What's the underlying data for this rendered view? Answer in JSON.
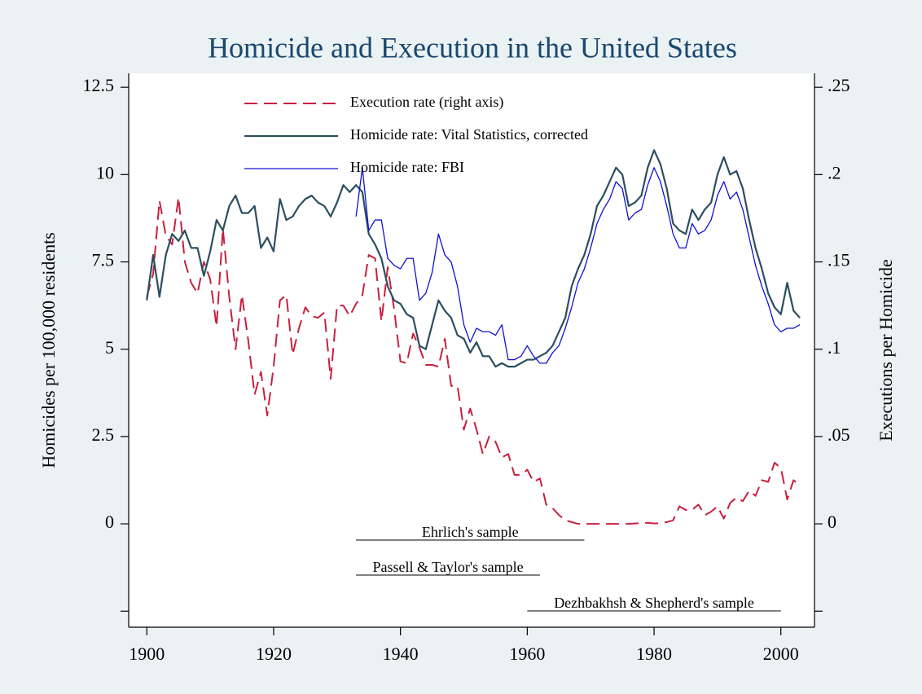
{
  "chart_data": {
    "type": "line",
    "title": "Homicide and Execution in the United States",
    "ylabel": "Homicides per 100,000 residents",
    "y2label": "Executions per Homicide",
    "x": [
      1900,
      1901,
      1902,
      1903,
      1904,
      1905,
      1906,
      1907,
      1908,
      1909,
      1910,
      1911,
      1912,
      1913,
      1914,
      1915,
      1916,
      1917,
      1918,
      1919,
      1920,
      1921,
      1922,
      1923,
      1924,
      1925,
      1926,
      1927,
      1928,
      1929,
      1930,
      1931,
      1932,
      1933,
      1934,
      1935,
      1936,
      1937,
      1938,
      1939,
      1940,
      1941,
      1942,
      1943,
      1944,
      1945,
      1946,
      1947,
      1948,
      1949,
      1950,
      1951,
      1952,
      1953,
      1954,
      1955,
      1956,
      1957,
      1958,
      1959,
      1960,
      1961,
      1962,
      1963,
      1964,
      1965,
      1966,
      1967,
      1968,
      1969,
      1970,
      1971,
      1972,
      1973,
      1974,
      1975,
      1976,
      1977,
      1978,
      1979,
      1980,
      1981,
      1982,
      1983,
      1984,
      1985,
      1986,
      1987,
      1988,
      1989,
      1990,
      1991,
      1992,
      1993,
      1994,
      1995,
      1996,
      1997,
      1998,
      1999,
      2000,
      2001,
      2002,
      2003
    ],
    "series": [
      {
        "name": "Execution rate (right axis)",
        "color": "#c8203f",
        "dashed": true,
        "axis": "y2",
        "values": [
          0.13,
          0.143,
          0.185,
          0.165,
          0.16,
          0.187,
          0.15,
          0.138,
          0.132,
          0.15,
          0.14,
          0.113,
          0.169,
          0.13,
          0.1,
          0.131,
          0.105,
          0.074,
          0.087,
          0.062,
          0.09,
          0.128,
          0.131,
          0.097,
          0.112,
          0.124,
          0.119,
          0.118,
          0.121,
          0.083,
          0.125,
          0.125,
          0.119,
          0.126,
          0.131,
          0.154,
          0.152,
          0.116,
          0.147,
          0.123,
          0.093,
          0.092,
          0.109,
          0.101,
          0.091,
          0.091,
          0.09,
          0.106,
          0.079,
          0.079,
          0.054,
          0.066,
          0.054,
          0.04,
          0.05,
          0.047,
          0.038,
          0.04,
          0.028,
          0.028,
          0.031,
          0.024,
          0.026,
          0.011,
          0.009,
          0.005,
          0.002,
          0.001,
          0,
          0,
          0,
          0,
          0,
          0,
          0,
          0,
          0,
          0.0002,
          0.0004,
          0.0006,
          0.0002,
          0.0004,
          0.001,
          0.002,
          0.01,
          0.008,
          0.008,
          0.011,
          0.005,
          0.007,
          0.01,
          0.003,
          0.012,
          0.015,
          0.013,
          0.019,
          0.016,
          0.025,
          0.024,
          0.035,
          0.032,
          0.014,
          0.025,
          0.022
        ]
      },
      {
        "name": "Homicide rate: Vital Statistics, corrected",
        "color": "#2b4f60",
        "width": 2.2,
        "values": [
          6.4,
          7.7,
          6.5,
          7.7,
          8.3,
          8.1,
          8.4,
          7.9,
          7.9,
          7.1,
          7.8,
          8.7,
          8.4,
          9.1,
          9.4,
          8.9,
          8.9,
          9.1,
          7.9,
          8.2,
          7.8,
          9.3,
          8.7,
          8.8,
          9.1,
          9.3,
          9.4,
          9.2,
          9.1,
          8.8,
          9.2,
          9.7,
          9.5,
          9.7,
          9.5,
          8.3,
          8.0,
          7.6,
          6.8,
          6.4,
          6.3,
          6.0,
          5.9,
          5.1,
          5.0,
          5.7,
          6.4,
          6.1,
          5.9,
          5.4,
          5.3,
          4.9,
          5.2,
          4.8,
          4.8,
          4.5,
          4.6,
          4.5,
          4.5,
          4.6,
          4.7,
          4.7,
          4.8,
          4.9,
          5.1,
          5.5,
          5.9,
          6.8,
          7.3,
          7.7,
          8.3,
          9.1,
          9.4,
          9.8,
          10.2,
          10.0,
          9.1,
          9.2,
          9.4,
          10.2,
          10.7,
          10.3,
          9.6,
          8.6,
          8.4,
          8.3,
          9.0,
          8.7,
          9.0,
          9.2,
          10.0,
          10.5,
          10.0,
          10.1,
          9.6,
          8.7,
          7.9,
          7.3,
          6.6,
          6.2,
          6.0,
          6.9,
          6.1,
          5.9
        ]
      },
      {
        "name": "Homicide rate: FBI",
        "color": "#1010d8",
        "width": 1.3,
        "values": [
          null,
          null,
          null,
          null,
          null,
          null,
          null,
          null,
          null,
          null,
          null,
          null,
          null,
          null,
          null,
          null,
          null,
          null,
          null,
          null,
          null,
          null,
          null,
          null,
          null,
          null,
          null,
          null,
          null,
          null,
          null,
          null,
          null,
          8.8,
          10.2,
          8.4,
          8.7,
          8.7,
          7.6,
          7.4,
          7.3,
          7.6,
          7.6,
          6.4,
          6.6,
          7.2,
          8.3,
          7.7,
          7.5,
          6.8,
          5.7,
          5.2,
          5.6,
          5.5,
          5.5,
          5.4,
          5.7,
          4.7,
          4.7,
          4.8,
          5.1,
          4.8,
          4.6,
          4.6,
          4.9,
          5.1,
          5.6,
          6.2,
          6.9,
          7.3,
          7.9,
          8.6,
          9.0,
          9.3,
          9.8,
          9.6,
          8.7,
          8.9,
          9.0,
          9.7,
          10.2,
          9.8,
          9.1,
          8.3,
          7.9,
          7.9,
          8.6,
          8.3,
          8.4,
          8.7,
          9.4,
          9.8,
          9.3,
          9.5,
          9.0,
          8.2,
          7.4,
          6.8,
          6.3,
          5.7,
          5.5,
          5.6,
          5.6,
          5.7
        ]
      }
    ],
    "xlim": [
      1897.4,
      2005.3
    ],
    "xticks": [
      1900,
      1920,
      1940,
      1960,
      1980,
      2000
    ],
    "ylim": [
      -2.96,
      12.9
    ],
    "yticks": [
      {
        "value": -2.5,
        "label": null
      },
      0,
      2.5,
      5,
      7.5,
      10,
      12.5
    ],
    "y2lim": [
      -0.0592,
      0.258
    ],
    "y2ticks": [
      {
        "value": -0.05,
        "label": null
      },
      0,
      {
        "value": 0.05,
        "label": ".05"
      },
      {
        "value": 0.1,
        "label": ".1"
      },
      {
        "value": 0.15,
        "label": ".15"
      },
      {
        "value": 0.2,
        "label": ".2"
      },
      {
        "value": 0.25,
        "label": ".25"
      }
    ],
    "samples": [
      {
        "label": "Ehrlich's sample",
        "start": 1933,
        "end": 1969
      },
      {
        "label": "Passell & Taylor's sample",
        "start": 1933,
        "end": 1962
      },
      {
        "label": "Dezhbakhsh & Shepherd's sample",
        "start": 1960,
        "end": 2000
      }
    ],
    "legend": "top-left"
  }
}
